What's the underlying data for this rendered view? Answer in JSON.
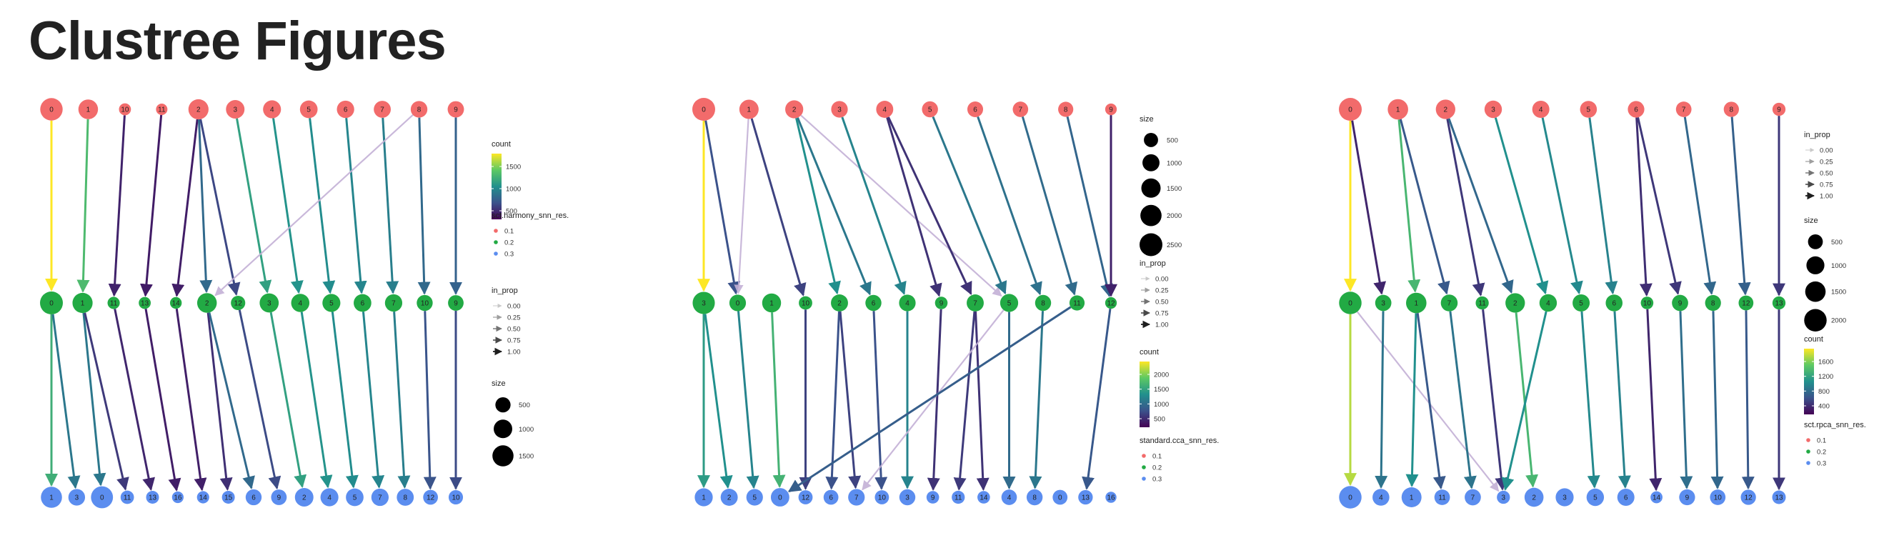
{
  "page": {
    "title": "Clustree Figures"
  },
  "colors": {
    "res_0_1": "#f26b6b",
    "res_0_2": "#22aa44",
    "res_0_3": "#5b8def",
    "edge_low": "#c4b1d6",
    "viridis": [
      "#440154",
      "#3b528b",
      "#21908d",
      "#5dc963",
      "#fde725"
    ]
  },
  "figures": [
    {
      "id": "harmony",
      "levels": [
        [
          "0",
          "1",
          "10",
          "11",
          "2",
          "3",
          "4",
          "5",
          "6",
          "7",
          "8",
          "9"
        ],
        [
          "0",
          "1",
          "11",
          "13",
          "14",
          "2",
          "12",
          "3",
          "4",
          "5",
          "6",
          "7",
          "10",
          "9"
        ],
        [
          "1",
          "3",
          "0",
          "11",
          "13",
          "16",
          "14",
          "15",
          "6",
          "9",
          "2",
          "4",
          "5",
          "7",
          "8",
          "12",
          "10"
        ]
      ],
      "node_sizes": [
        [
          1800,
          1200,
          180,
          140,
          1300,
          1000,
          900,
          850,
          800,
          750,
          700,
          650
        ],
        [
          1900,
          1300,
          200,
          180,
          160,
          1200,
          400,
          1100,
          950,
          900,
          850,
          800,
          600,
          550
        ],
        [
          1500,
          700,
          1700,
          300,
          250,
          150,
          200,
          250,
          600,
          550,
          1000,
          900,
          850,
          800,
          750,
          450,
          400
        ]
      ],
      "edges": [
        {
          "from": "0",
          "to": "0",
          "level": 0,
          "count": 1750,
          "in_prop": 0.97
        },
        {
          "from": "1",
          "to": "1",
          "level": 0,
          "count": 1200,
          "in_prop": 0.95
        },
        {
          "from": "10",
          "to": "11",
          "level": 0,
          "count": 180,
          "in_prop": 0.95
        },
        {
          "from": "11",
          "to": "13",
          "level": 0,
          "count": 140,
          "in_prop": 0.95
        },
        {
          "from": "2",
          "to": "14",
          "level": 0,
          "count": 150,
          "in_prop": 0.9
        },
        {
          "from": "2",
          "to": "2",
          "level": 0,
          "count": 600,
          "in_prop": 0.9
        },
        {
          "from": "2",
          "to": "12",
          "level": 0,
          "count": 380,
          "in_prop": 0.9
        },
        {
          "from": "3",
          "to": "3",
          "level": 0,
          "count": 1000,
          "in_prop": 0.95
        },
        {
          "from": "4",
          "to": "4",
          "level": 0,
          "count": 900,
          "in_prop": 0.95
        },
        {
          "from": "5",
          "to": "5",
          "level": 0,
          "count": 850,
          "in_prop": 0.95
        },
        {
          "from": "6",
          "to": "6",
          "level": 0,
          "count": 800,
          "in_prop": 0.95
        },
        {
          "from": "7",
          "to": "7",
          "level": 0,
          "count": 750,
          "in_prop": 0.95
        },
        {
          "from": "8",
          "to": "10",
          "level": 0,
          "count": 600,
          "in_prop": 0.95
        },
        {
          "from": "8",
          "to": "2",
          "level": 0,
          "count": 60,
          "in_prop": 0.1
        },
        {
          "from": "9",
          "to": "9",
          "level": 0,
          "count": 550,
          "in_prop": 0.95
        },
        {
          "from": "0",
          "to": "1",
          "level": 1,
          "count": 1100,
          "in_prop": 0.9
        },
        {
          "from": "0",
          "to": "3",
          "level": 1,
          "count": 700,
          "in_prop": 0.9
        },
        {
          "from": "1",
          "to": "0",
          "level": 1,
          "count": 700,
          "in_prop": 0.9
        },
        {
          "from": "1",
          "to": "11",
          "level": 1,
          "count": 300,
          "in_prop": 0.9
        },
        {
          "from": "11",
          "to": "13",
          "level": 1,
          "count": 200,
          "in_prop": 0.95
        },
        {
          "from": "13",
          "to": "16",
          "level": 1,
          "count": 150,
          "in_prop": 0.95
        },
        {
          "from": "14",
          "to": "14",
          "level": 1,
          "count": 160,
          "in_prop": 0.95
        },
        {
          "from": "2",
          "to": "15",
          "level": 1,
          "count": 250,
          "in_prop": 0.9
        },
        {
          "from": "2",
          "to": "6",
          "level": 1,
          "count": 600,
          "in_prop": 0.9
        },
        {
          "from": "12",
          "to": "9",
          "level": 1,
          "count": 400,
          "in_prop": 0.95
        },
        {
          "from": "3",
          "to": "2",
          "level": 1,
          "count": 1000,
          "in_prop": 0.95
        },
        {
          "from": "4",
          "to": "4",
          "level": 1,
          "count": 900,
          "in_prop": 0.95
        },
        {
          "from": "5",
          "to": "5",
          "level": 1,
          "count": 850,
          "in_prop": 0.95
        },
        {
          "from": "6",
          "to": "7",
          "level": 1,
          "count": 800,
          "in_prop": 0.95
        },
        {
          "from": "7",
          "to": "8",
          "level": 1,
          "count": 750,
          "in_prop": 0.95
        },
        {
          "from": "10",
          "to": "12",
          "level": 1,
          "count": 450,
          "in_prop": 0.95
        },
        {
          "from": "9",
          "to": "10",
          "level": 1,
          "count": 400,
          "in_prop": 0.95
        }
      ],
      "legends": [
        {
          "type": "colorbar",
          "title": "count",
          "ticks": [
            "1500",
            "1000",
            "500"
          ]
        },
        {
          "type": "points",
          "title": "sct.harmony_snn_res.",
          "items": [
            "0.1",
            "0.2",
            "0.3"
          ]
        },
        {
          "type": "arrows",
          "title": "in_prop",
          "items": [
            "0.00",
            "0.25",
            "0.50",
            "0.75",
            "1.00"
          ]
        },
        {
          "type": "size",
          "title": "size",
          "items": [
            "500",
            "1000",
            "1500"
          ]
        }
      ]
    },
    {
      "id": "cca",
      "levels": [
        [
          "0",
          "1",
          "2",
          "3",
          "4",
          "5",
          "6",
          "7",
          "8",
          "9"
        ],
        [
          "3",
          "0",
          "1",
          "10",
          "2",
          "6",
          "4",
          "9",
          "7",
          "5",
          "8",
          "11",
          "12"
        ],
        [
          "1",
          "2",
          "5",
          "0",
          "12",
          "6",
          "7",
          "10",
          "3",
          "9",
          "11",
          "14",
          "4",
          "8",
          "0",
          "13",
          "16"
        ]
      ],
      "node_sizes": [
        [
          2500,
          1500,
          1200,
          900,
          1000,
          800,
          750,
          700,
          650,
          200
        ],
        [
          2300,
          900,
          1400,
          400,
          1000,
          800,
          900,
          300,
          1000,
          1200,
          800,
          650,
          200
        ],
        [
          1200,
          1000,
          900,
          1300,
          500,
          600,
          900,
          500,
          800,
          300,
          350,
          300,
          700,
          800,
          600,
          550,
          150
        ]
      ],
      "edges": [
        {
          "from": "0",
          "to": "3",
          "level": 0,
          "count": 2000,
          "in_prop": 0.97
        },
        {
          "from": "0",
          "to": "0",
          "level": 0,
          "count": 500,
          "in_prop": 0.9
        },
        {
          "from": "1",
          "to": "0",
          "level": 0,
          "count": 100,
          "in_prop": 0.15
        },
        {
          "from": "1",
          "to": "10",
          "level": 0,
          "count": 400,
          "in_prop": 0.9
        },
        {
          "from": "2",
          "to": "2",
          "level": 0,
          "count": 1000,
          "in_prop": 0.9
        },
        {
          "from": "2",
          "to": "6",
          "level": 0,
          "count": 800,
          "in_prop": 0.9
        },
        {
          "from": "2",
          "to": "5",
          "level": 0,
          "count": 80,
          "in_prop": 0.12
        },
        {
          "from": "3",
          "to": "4",
          "level": 0,
          "count": 900,
          "in_prop": 0.95
        },
        {
          "from": "4",
          "to": "9",
          "level": 0,
          "count": 300,
          "in_prop": 0.9
        },
        {
          "from": "4",
          "to": "7",
          "level": 0,
          "count": 300,
          "in_prop": 0.9
        },
        {
          "from": "5",
          "to": "5",
          "level": 0,
          "count": 800,
          "in_prop": 0.95
        },
        {
          "from": "6",
          "to": "8",
          "level": 0,
          "count": 750,
          "in_prop": 0.95
        },
        {
          "from": "7",
          "to": "11",
          "level": 0,
          "count": 700,
          "in_prop": 0.95
        },
        {
          "from": "8",
          "to": "12",
          "level": 0,
          "count": 650,
          "in_prop": 0.95
        },
        {
          "from": "9",
          "to": "12",
          "level": 0,
          "count": 200,
          "in_prop": 0.95
        },
        {
          "from": "3",
          "to": "1",
          "level": 1,
          "count": 1100,
          "in_prop": 0.9
        },
        {
          "from": "3",
          "to": "2",
          "level": 1,
          "count": 1000,
          "in_prop": 0.9
        },
        {
          "from": "0",
          "to": "5",
          "level": 1,
          "count": 900,
          "in_prop": 0.95
        },
        {
          "from": "1",
          "to": "0",
          "level": 1,
          "count": 1300,
          "in_prop": 0.95
        },
        {
          "from": "10",
          "to": "12",
          "level": 1,
          "count": 400,
          "in_prop": 0.95
        },
        {
          "from": "2",
          "to": "6",
          "level": 1,
          "count": 500,
          "in_prop": 0.9
        },
        {
          "from": "2",
          "to": "7",
          "level": 1,
          "count": 400,
          "in_prop": 0.9
        },
        {
          "from": "6",
          "to": "10",
          "level": 1,
          "count": 500,
          "in_prop": 0.95
        },
        {
          "from": "4",
          "to": "3",
          "level": 1,
          "count": 900,
          "in_prop": 0.95
        },
        {
          "from": "9",
          "to": "9",
          "level": 1,
          "count": 300,
          "in_prop": 0.95
        },
        {
          "from": "7",
          "to": "11",
          "level": 1,
          "count": 350,
          "in_prop": 0.9
        },
        {
          "from": "7",
          "to": "14",
          "level": 1,
          "count": 300,
          "in_prop": 0.9
        },
        {
          "from": "5",
          "to": "7",
          "level": 1,
          "count": 100,
          "in_prop": 0.12
        },
        {
          "from": "5",
          "to": "4",
          "level": 1,
          "count": 700,
          "in_prop": 0.9
        },
        {
          "from": "8",
          "to": "8",
          "level": 1,
          "count": 800,
          "in_prop": 0.95
        },
        {
          "from": "11",
          "to": "0",
          "level": 1,
          "count": 600,
          "in_prop": 0.95
        },
        {
          "from": "12",
          "to": "13",
          "level": 1,
          "count": 550,
          "in_prop": 0.95
        }
      ],
      "legends": [
        {
          "type": "size",
          "title": "size",
          "items": [
            "500",
            "1000",
            "1500",
            "2000",
            "2500"
          ]
        },
        {
          "type": "arrows",
          "title": "in_prop",
          "items": [
            "0.00",
            "0.25",
            "0.50",
            "0.75",
            "1.00"
          ]
        },
        {
          "type": "colorbar",
          "title": "count",
          "ticks": [
            "2000",
            "1500",
            "1000",
            "500"
          ]
        },
        {
          "type": "points",
          "title": "standard.cca_snn_res.",
          "items": [
            "0.1",
            "0.2",
            "0.3"
          ]
        }
      ]
    },
    {
      "id": "rpca",
      "levels": [
        [
          "0",
          "1",
          "2",
          "3",
          "4",
          "5",
          "6",
          "7",
          "8",
          "9"
        ],
        [
          "0",
          "3",
          "1",
          "7",
          "11",
          "2",
          "4",
          "5",
          "6",
          "10",
          "9",
          "8",
          "12",
          "13"
        ],
        [
          "0",
          "4",
          "1",
          "11",
          "7",
          "3",
          "2",
          "3",
          "5",
          "6",
          "14",
          "9",
          "10",
          "12",
          "13"
        ]
      ],
      "node_sizes": [
        [
          2100,
          1500,
          1300,
          900,
          850,
          800,
          750,
          600,
          550,
          300
        ],
        [
          2000,
          700,
          1500,
          800,
          300,
          1300,
          900,
          850,
          800,
          250,
          700,
          650,
          500,
          300
        ],
        [
          2000,
          800,
          1400,
          600,
          700,
          300,
          1200,
          1000,
          900,
          850,
          200,
          650,
          600,
          550,
          350
        ]
      ],
      "edges": [
        {
          "from": "0",
          "to": "0",
          "level": 0,
          "count": 1800,
          "in_prop": 0.97
        },
        {
          "from": "0",
          "to": "3",
          "level": 0,
          "count": 200,
          "in_prop": 0.9
        },
        {
          "from": "1",
          "to": "1",
          "level": 0,
          "count": 1200,
          "in_prop": 0.95
        },
        {
          "from": "1",
          "to": "7",
          "level": 0,
          "count": 500,
          "in_prop": 0.9
        },
        {
          "from": "2",
          "to": "11",
          "level": 0,
          "count": 300,
          "in_prop": 0.9
        },
        {
          "from": "2",
          "to": "2",
          "level": 0,
          "count": 600,
          "in_prop": 0.9
        },
        {
          "from": "3",
          "to": "4",
          "level": 0,
          "count": 900,
          "in_prop": 0.95
        },
        {
          "from": "4",
          "to": "5",
          "level": 0,
          "count": 850,
          "in_prop": 0.95
        },
        {
          "from": "5",
          "to": "6",
          "level": 0,
          "count": 800,
          "in_prop": 0.95
        },
        {
          "from": "6",
          "to": "10",
          "level": 0,
          "count": 250,
          "in_prop": 0.9
        },
        {
          "from": "6",
          "to": "9",
          "level": 0,
          "count": 300,
          "in_prop": 0.9
        },
        {
          "from": "7",
          "to": "8",
          "level": 0,
          "count": 600,
          "in_prop": 0.95
        },
        {
          "from": "8",
          "to": "12",
          "level": 0,
          "count": 550,
          "in_prop": 0.95
        },
        {
          "from": "9",
          "to": "13",
          "level": 0,
          "count": 300,
          "in_prop": 0.95
        },
        {
          "from": "0",
          "to": "0",
          "level": 1,
          "count": 1600,
          "in_prop": 0.97
        },
        {
          "from": "0",
          "to": "3",
          "level": 1,
          "count": 100,
          "in_prop": 0.15
        },
        {
          "from": "3",
          "to": "4",
          "level": 1,
          "count": 700,
          "in_prop": 0.95
        },
        {
          "from": "1",
          "to": "1",
          "level": 1,
          "count": 900,
          "in_prop": 0.95
        },
        {
          "from": "1",
          "to": "11",
          "level": 1,
          "count": 500,
          "in_prop": 0.9
        },
        {
          "from": "7",
          "to": "7",
          "level": 1,
          "count": 700,
          "in_prop": 0.95
        },
        {
          "from": "11",
          "to": "3",
          "level": 1,
          "count": 300,
          "in_prop": 0.9
        },
        {
          "from": "2",
          "to": "2",
          "level": 1,
          "count": 1200,
          "in_prop": 0.95
        },
        {
          "from": "4",
          "to": "3",
          "level": 1,
          "count": 900,
          "in_prop": 0.95
        },
        {
          "from": "5",
          "to": "5",
          "level": 1,
          "count": 850,
          "in_prop": 0.95
        },
        {
          "from": "6",
          "to": "6",
          "level": 1,
          "count": 800,
          "in_prop": 0.95
        },
        {
          "from": "10",
          "to": "14",
          "level": 1,
          "count": 200,
          "in_prop": 0.95
        },
        {
          "from": "9",
          "to": "9",
          "level": 1,
          "count": 650,
          "in_prop": 0.95
        },
        {
          "from": "8",
          "to": "10",
          "level": 1,
          "count": 600,
          "in_prop": 0.95
        },
        {
          "from": "12",
          "to": "12",
          "level": 1,
          "count": 500,
          "in_prop": 0.95
        },
        {
          "from": "13",
          "to": "13",
          "level": 1,
          "count": 300,
          "in_prop": 0.95
        }
      ],
      "legends": [
        {
          "type": "arrows",
          "title": "in_prop",
          "items": [
            "0.00",
            "0.25",
            "0.50",
            "0.75",
            "1.00"
          ]
        },
        {
          "type": "size",
          "title": "size",
          "items": [
            "500",
            "1000",
            "1500",
            "2000"
          ]
        },
        {
          "type": "colorbar",
          "title": "count",
          "ticks": [
            "1600",
            "1200",
            "800",
            "400"
          ]
        },
        {
          "type": "points",
          "title": "sct.rpca_snn_res.",
          "items": [
            "0.1",
            "0.2",
            "0.3"
          ]
        }
      ]
    }
  ]
}
